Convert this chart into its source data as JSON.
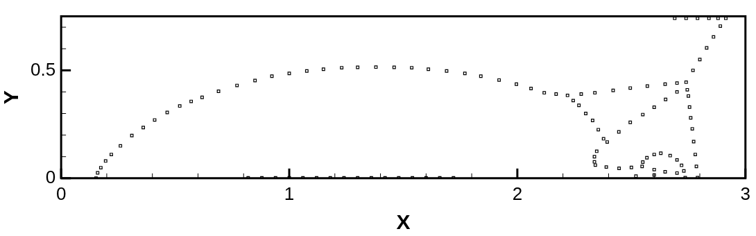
{
  "chart_data": {
    "type": "scatter",
    "xlabel": "X",
    "ylabel": "Y",
    "marker": "square",
    "grid": false,
    "xlim": [
      0,
      3
    ],
    "ylim": [
      0,
      0.75
    ],
    "xticks": [
      0,
      {
        "value": 0.2,
        "label": null
      },
      {
        "value": 0.4,
        "label": null
      },
      {
        "value": 0.6,
        "label": null
      },
      {
        "value": 0.8,
        "label": null
      },
      1,
      {
        "value": 1.2,
        "label": null
      },
      {
        "value": 1.4,
        "label": null
      },
      {
        "value": 1.6,
        "label": null
      },
      {
        "value": 1.8,
        "label": null
      },
      2,
      {
        "value": 2.2,
        "label": null
      },
      {
        "value": 2.4,
        "label": null
      },
      {
        "value": 2.6,
        "label": null
      },
      {
        "value": 2.8,
        "label": null
      },
      3
    ],
    "yticks": [
      0,
      {
        "value": 0.1,
        "label": null
      },
      {
        "value": 0.2,
        "label": null
      },
      {
        "value": 0.3,
        "label": null
      },
      {
        "value": 0.4,
        "label": null
      },
      0.5,
      {
        "value": 0.6,
        "label": null
      },
      {
        "value": 0.7,
        "label": null
      }
    ],
    "series": [
      {
        "color": "#000000",
        "x": [
          0.153,
          0.16,
          0.174,
          0.195,
          0.22,
          0.26,
          0.31,
          0.36,
          0.41,
          0.465,
          0.52,
          0.57,
          0.618,
          0.69,
          0.771,
          0.85,
          0.924,
          1.0,
          1.077,
          1.15,
          1.23,
          1.3,
          1.38,
          1.46,
          1.537,
          1.61,
          1.69,
          1.77,
          1.84,
          1.92,
          1.996,
          2.06,
          2.118,
          2.17,
          2.22,
          2.245,
          2.27,
          2.3,
          2.33,
          2.355,
          2.378,
          2.28,
          2.34,
          2.42,
          2.495,
          2.57,
          2.648,
          2.7,
          2.74,
          2.77,
          2.8,
          2.83,
          2.86,
          2.89,
          2.914,
          2.69,
          2.74,
          2.79,
          2.84,
          2.88,
          2.745,
          2.75,
          2.755,
          2.76,
          2.767,
          2.773,
          2.78,
          2.785,
          2.79,
          2.7,
          2.65,
          2.6,
          2.55,
          2.495,
          2.445,
          2.394,
          2.348,
          2.338,
          2.338,
          2.342,
          2.39,
          2.446,
          2.5,
          2.547,
          2.6,
          2.648,
          2.7,
          2.55,
          2.568,
          2.6,
          2.629,
          2.67,
          2.7,
          2.72,
          2.73,
          2.736,
          2.6,
          2.52,
          0.82,
          0.88,
          0.94,
          1.0,
          1.06,
          1.12,
          1.18,
          1.24,
          1.3,
          1.36,
          1.42,
          1.48,
          1.54,
          1.6,
          1.66,
          1.72
        ],
        "values": [
          0,
          0.025,
          0.049,
          0.08,
          0.11,
          0.15,
          0.198,
          0.235,
          0.27,
          0.305,
          0.335,
          0.356,
          0.375,
          0.403,
          0.43,
          0.453,
          0.473,
          0.486,
          0.497,
          0.505,
          0.512,
          0.514,
          0.515,
          0.514,
          0.512,
          0.505,
          0.497,
          0.486,
          0.473,
          0.455,
          0.436,
          0.416,
          0.396,
          0.39,
          0.384,
          0.36,
          0.338,
          0.3,
          0.268,
          0.225,
          0.183,
          0.39,
          0.396,
          0.407,
          0.418,
          0.427,
          0.436,
          0.441,
          0.445,
          0.5,
          0.55,
          0.604,
          0.655,
          0.705,
          0.741,
          0.741,
          0.741,
          0.741,
          0.741,
          0.741,
          0.41,
          0.381,
          0.33,
          0.28,
          0.229,
          0.17,
          0.11,
          0.055,
          0.003,
          0.4,
          0.365,
          0.329,
          0.295,
          0.259,
          0.215,
          0.168,
          0.125,
          0.1,
          0.076,
          0.061,
          0.052,
          0.046,
          0.05,
          0.055,
          0.04,
          0.03,
          0.024,
          0.075,
          0.095,
          0.11,
          0.116,
          0.105,
          0.085,
          0.06,
          0.034,
          0.003,
          0.015,
          0.01,
          0.002,
          0.002,
          0.002,
          0.002,
          0.002,
          0.002,
          0.002,
          0.002,
          0.002,
          0.002,
          0.002,
          0.002,
          0.002,
          0.002,
          0.002,
          0.002
        ]
      }
    ]
  }
}
